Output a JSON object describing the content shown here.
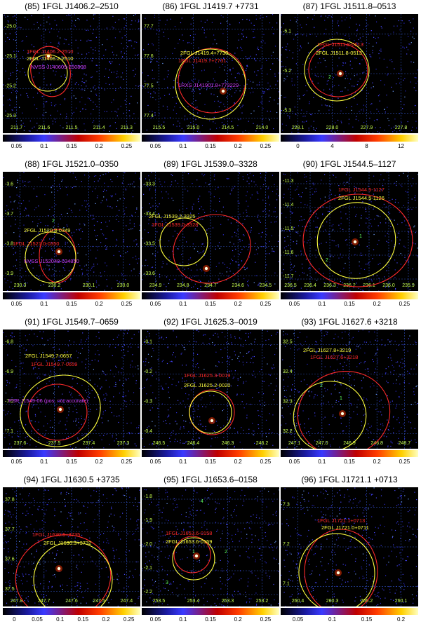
{
  "panels": [
    {
      "title": "(85) 1FGL J1406.2–2510",
      "labels": [
        {
          "t": "1FGL J1406.2-2510",
          "c": "#ff2a2a"
        },
        {
          "t": "2FGL J1406.2-2510",
          "c": "#ffff40"
        },
        {
          "t": "NVSS J140609-250808",
          "c": "#d040ff"
        }
      ],
      "yticks": [
        "-25.0",
        "-25.1",
        "-25.2",
        "-25.3"
      ],
      "xticks": [
        "211.7",
        "211.6",
        "211.5",
        "211.4",
        "211.3"
      ],
      "cticks": [
        "0.05",
        "0.1",
        "0.15",
        "0.2",
        "0.25"
      ],
      "numbers": []
    },
    {
      "title": "(86) 1FGL J1419.7 +7731",
      "labels": [
        {
          "t": "2FGL J1419.4+7730",
          "c": "#ffff40"
        },
        {
          "t": "1FGL J1419.7+7731",
          "c": "#ff2a2a"
        },
        {
          "t": "1RXS J141901.8+773229",
          "c": "#d040ff"
        }
      ],
      "yticks": [
        "77.7",
        "77.6",
        "77.5",
        "77.4"
      ],
      "xticks": [
        "215.5",
        "215.0",
        "214.5",
        "214.0"
      ],
      "cticks": [
        "0.05",
        "0.1",
        "0.15",
        "0.2",
        "0.25"
      ],
      "numbers": []
    },
    {
      "title": "(87) 1FGL J1511.8–0513",
      "labels": [
        {
          "t": "1FGL J1511.8-0513",
          "c": "#ff2a2a"
        },
        {
          "t": "2FGL J1511.8-0513",
          "c": "#ffff40"
        }
      ],
      "yticks": [
        "-5.1",
        "-5.2",
        "-5.3"
      ],
      "xticks": [
        "228.1",
        "228.0",
        "227.9",
        "227.8"
      ],
      "cticks": [
        "0",
        "4",
        "8",
        "12"
      ],
      "numbers": [
        "2"
      ]
    },
    {
      "title": "(88) 1FGL J1521.0–0350",
      "labels": [
        {
          "t": "2FGL J1520.8-0349",
          "c": "#ffff40"
        },
        {
          "t": "1FGL J1521.0-0350",
          "c": "#ff2a2a"
        },
        {
          "t": "NVSS J152048-034850",
          "c": "#d040ff"
        }
      ],
      "yticks": [
        "-3.6",
        "-3.7",
        "-3.8",
        "-3.9"
      ],
      "xticks": [
        "230.3",
        "230.2",
        "230.1",
        "230.0"
      ],
      "cticks": [
        "0.05",
        "0.1",
        "0.15",
        "0.2",
        "0.25"
      ],
      "numbers": [
        "2"
      ]
    },
    {
      "title": "(89) 1FGL J1539.0–3328",
      "labels": [
        {
          "t": "2FGL J1539.2-3325",
          "c": "#ffff40"
        },
        {
          "t": "1FGL J1539.0-3328",
          "c": "#ff2a2a"
        }
      ],
      "yticks": [
        "-33.3",
        "-33.4",
        "-33.5",
        "-33.6"
      ],
      "xticks": [
        "234.9",
        "234.8",
        "234.7",
        "234.6",
        "234.5"
      ],
      "cticks": [
        "0.05",
        "0.1",
        "0.15",
        "0.2",
        "0.25"
      ],
      "numbers": []
    },
    {
      "title": "(90) 1FGL J1544.5–1127",
      "labels": [
        {
          "t": "1FGL J1544.5-1127",
          "c": "#ff2a2a"
        },
        {
          "t": "2FGL J1544.5-1126",
          "c": "#ffff40"
        }
      ],
      "yticks": [
        "-11.3",
        "-11.4",
        "-11.5",
        "-11.6",
        "-11.7"
      ],
      "xticks": [
        "236.5",
        "236.4",
        "236.3",
        "236.2",
        "236.1",
        "236.0",
        "235.9"
      ],
      "cticks": [
        "0.05",
        "0.1",
        "0.15",
        "0.2",
        "0.25"
      ],
      "numbers": [
        "1",
        "2"
      ]
    },
    {
      "title": "(91) 1FGL J1549.7–0659",
      "labels": [
        {
          "t": "2FGL J1549.7-0657",
          "c": "#ffff40"
        },
        {
          "t": "1FGL J1549.7-0659",
          "c": "#ff2a2a"
        },
        {
          "t": "PSR J1549-06 (pos. not accurate)",
          "c": "#d040ff"
        }
      ],
      "yticks": [
        "-6.8",
        "-6.9",
        "-7.0",
        "-7.1"
      ],
      "xticks": [
        "237.6",
        "237.5",
        "237.4",
        "237.3"
      ],
      "cticks": [
        "0.05",
        "0.1",
        "0.15",
        "0.2",
        "0.25"
      ],
      "numbers": []
    },
    {
      "title": "(92) 1FGL J1625.3–0019",
      "labels": [
        {
          "t": "1FGL J1625.3-0019",
          "c": "#ff2a2a"
        },
        {
          "t": "2FGL J1625.2-0020",
          "c": "#ffff40"
        }
      ],
      "yticks": [
        "-0.1",
        "-0.2",
        "-0.3",
        "-0.4"
      ],
      "xticks": [
        "246.5",
        "246.4",
        "246.3",
        "246.2"
      ],
      "cticks": [
        "0.05",
        "0.1",
        "0.15",
        "0.2",
        "0.25"
      ],
      "numbers": []
    },
    {
      "title": "(93) 1FGL J1627.6 +3218",
      "labels": [
        {
          "t": "2FGL J1627.8+3219",
          "c": "#ffff40"
        },
        {
          "t": "1FGL J1627.6+3218",
          "c": "#ff2a2a"
        }
      ],
      "yticks": [
        "32.5",
        "32.4",
        "32.3",
        "32.2"
      ],
      "xticks": [
        "247.1",
        "247.0",
        "246.9",
        "246.8",
        "246.7"
      ],
      "cticks": [
        "0.05",
        "0.1",
        "0.15",
        "0.2",
        "0.25"
      ],
      "numbers": [
        "2",
        "1"
      ]
    },
    {
      "title": "(94) 1FGL J1630.5 +3735",
      "labels": [
        {
          "t": "1FGL J1630.5+3735",
          "c": "#ff2a2a"
        },
        {
          "t": "2FGL J1630.3+3732",
          "c": "#ffff40"
        }
      ],
      "yticks": [
        "37.8",
        "37.7",
        "37.6",
        "37.5"
      ],
      "xticks": [
        "247.8",
        "247.7",
        "247.6",
        "247.5",
        "247.4"
      ],
      "cticks": [
        "0",
        "0.05",
        "0.1",
        "0.15",
        "0.2",
        "0.25"
      ],
      "numbers": []
    },
    {
      "title": "(95) 1FGL J1653.6–0158",
      "labels": [
        {
          "t": "1FGL J1653.6-0158",
          "c": "#ff2a2a"
        },
        {
          "t": "2FGL J1653.6-0159",
          "c": "#ffff40"
        }
      ],
      "yticks": [
        "-1.8",
        "-1.9",
        "-2.0",
        "-2.1",
        "-2.2"
      ],
      "xticks": [
        "253.5",
        "253.4",
        "253.3",
        "253.2"
      ],
      "cticks": [
        "0.05",
        "0.1",
        "0.15",
        "0.2",
        "0.25"
      ],
      "numbers": [
        "4",
        "1",
        "2",
        "3"
      ]
    },
    {
      "title": "(96) 1FGL J1721.1 +0713",
      "labels": [
        {
          "t": "1FGL J1721.1+0713",
          "c": "#ff2a2a"
        },
        {
          "t": "2FGL J1721.0+0711",
          "c": "#ffff40"
        }
      ],
      "yticks": [
        "7.3",
        "7.2",
        "7.1"
      ],
      "xticks": [
        "260.4",
        "260.3",
        "260.2",
        "260.1"
      ],
      "cticks": [
        "0.05",
        "0.1",
        "0.15",
        "0.2"
      ],
      "numbers": []
    }
  ],
  "colors": {
    "red_ellipse": "#ff2a2a",
    "yellow_ellipse": "#ffff40",
    "grid": "#3050c0",
    "tick_text": "#c8ff50"
  }
}
